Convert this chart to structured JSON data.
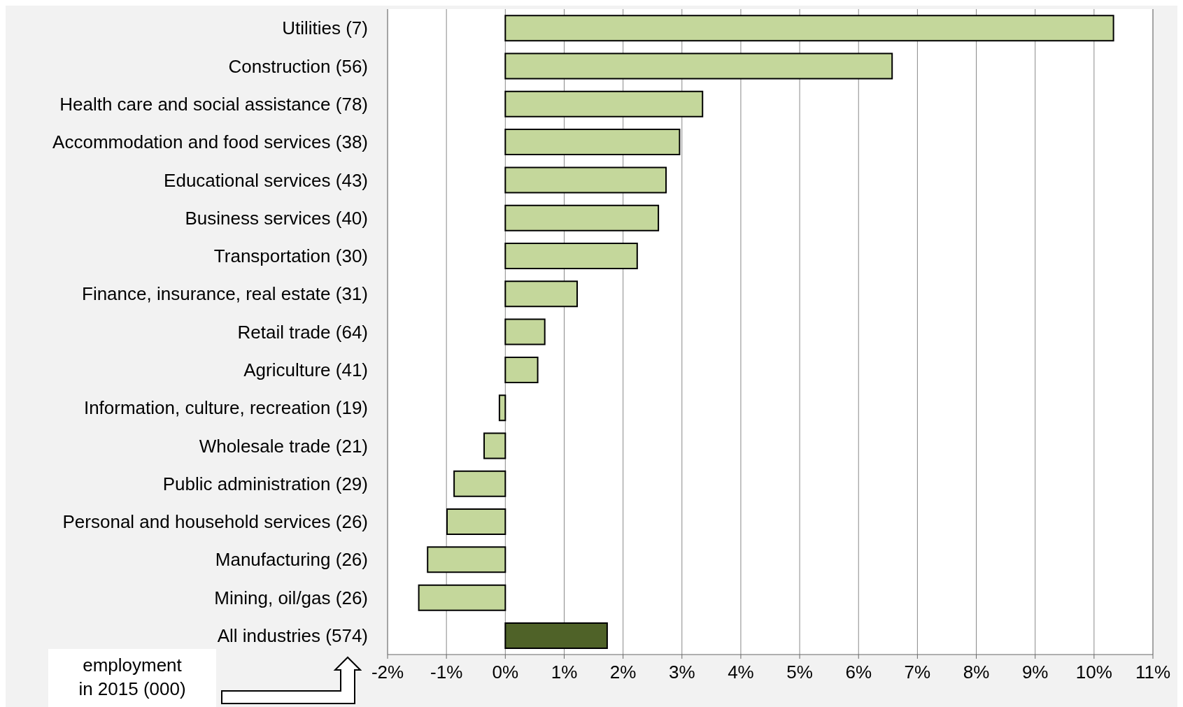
{
  "chart_data": {
    "type": "bar",
    "orientation": "horizontal",
    "categories": [
      "Utilities (7)",
      "Construction (56)",
      "Health care and social assistance (78)",
      "Accommodation and food services (38)",
      "Educational services (43)",
      "Business services (40)",
      "Transportation (30)",
      "Finance, insurance, real estate (31)",
      "Retail trade (64)",
      "Agriculture (41)",
      "Information, culture, recreation (19)",
      "Wholesale trade (21)",
      "Public administration (29)",
      "Personal and household services (26)",
      "Manufacturing (26)",
      "Mining, oil/gas (26)",
      "All industries (574)"
    ],
    "values": [
      10.33,
      6.57,
      3.35,
      2.96,
      2.73,
      2.6,
      2.24,
      1.22,
      0.67,
      0.55,
      -0.1,
      -0.36,
      -0.87,
      -0.99,
      -1.32,
      -1.47,
      1.73
    ],
    "colors": [
      "#c4d79b",
      "#c4d79b",
      "#c4d79b",
      "#c4d79b",
      "#c4d79b",
      "#c4d79b",
      "#c4d79b",
      "#c4d79b",
      "#c4d79b",
      "#c4d79b",
      "#c4d79b",
      "#c4d79b",
      "#c4d79b",
      "#c4d79b",
      "#c4d79b",
      "#c4d79b",
      "#4f6228"
    ],
    "xlim": [
      -2,
      11
    ],
    "xticks": [
      {
        "value": -2,
        "label": "-2%"
      },
      {
        "value": -1,
        "label": "-1%"
      },
      {
        "value": 0,
        "label": "0%"
      },
      {
        "value": 1,
        "label": "1%"
      },
      {
        "value": 2,
        "label": "2%"
      },
      {
        "value": 3,
        "label": "3%"
      },
      {
        "value": 4,
        "label": "4%"
      },
      {
        "value": 5,
        "label": "5%"
      },
      {
        "value": 6,
        "label": "6%"
      },
      {
        "value": 7,
        "label": "7%"
      },
      {
        "value": 8,
        "label": "8%"
      },
      {
        "value": 9,
        "label": "9%"
      },
      {
        "value": 10,
        "label": "10%"
      },
      {
        "value": 11,
        "label": "11%"
      }
    ],
    "grid": "x",
    "annotations": [
      "employment\nin 2015 (000)"
    ]
  }
}
